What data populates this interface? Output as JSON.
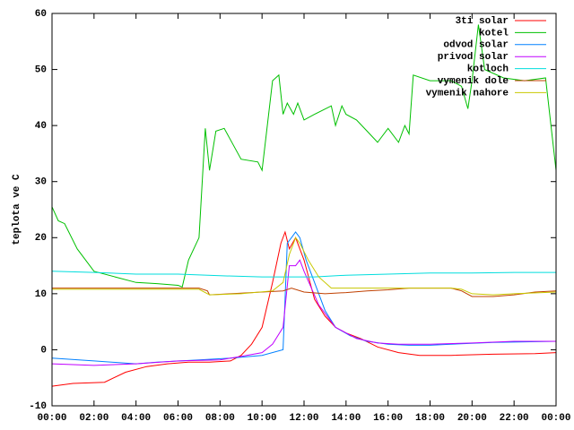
{
  "chart_data": {
    "type": "line",
    "ylabel": "teplota ve C",
    "xlim": [
      0,
      24
    ],
    "xticks": [
      {
        "value": 0,
        "label": "00:00"
      },
      {
        "value": 2,
        "label": "02:00"
      },
      {
        "value": 4,
        "label": "04:00"
      },
      {
        "value": 6,
        "label": "06:00"
      },
      {
        "value": 8,
        "label": "08:00"
      },
      {
        "value": 10,
        "label": "10:00"
      },
      {
        "value": 12,
        "label": "12:00"
      },
      {
        "value": 14,
        "label": "14:00"
      },
      {
        "value": 16,
        "label": "16:00"
      },
      {
        "value": 18,
        "label": "18:00"
      },
      {
        "value": 20,
        "label": "20:00"
      },
      {
        "value": 22,
        "label": "22:00"
      },
      {
        "value": 24,
        "label": "00:00"
      }
    ],
    "ylim": [
      -10,
      60
    ],
    "yticks": [
      -10,
      0,
      10,
      20,
      30,
      40,
      50,
      60
    ],
    "grid": false,
    "legend": "top-right",
    "series": [
      {
        "name": "3ti solar",
        "color": "#ff0000",
        "x": [
          0,
          1,
          2.5,
          3.5,
          4.5,
          5.5,
          6.5,
          7.5,
          8.5,
          9,
          9.5,
          10,
          10.5,
          10.9,
          11.1,
          11.3,
          11.6,
          12,
          12.5,
          13,
          13.5,
          14,
          14.7,
          15.5,
          16.5,
          17.5,
          19,
          21,
          23,
          24
        ],
        "values": [
          -6.5,
          -6,
          -5.8,
          -4,
          -3,
          -2.5,
          -2.2,
          -2.2,
          -2,
          -1,
          1,
          4,
          12,
          19,
          21,
          18,
          20,
          16,
          9,
          6,
          4,
          3,
          2,
          0.5,
          -0.5,
          -1,
          -1,
          -0.8,
          -0.7,
          -0.5
        ]
      },
      {
        "name": "kotel",
        "color": "#00c000",
        "x": [
          0,
          0.3,
          0.6,
          1.2,
          2,
          3,
          4,
          5,
          6,
          6.2,
          6.5,
          7,
          7.3,
          7.5,
          7.8,
          8.2,
          9,
          9.8,
          10,
          10.5,
          10.8,
          11,
          11.2,
          11.5,
          11.7,
          12,
          12.5,
          13.3,
          13.5,
          13.8,
          14,
          14.5,
          15,
          15.5,
          16,
          16.5,
          16.8,
          17,
          17.2,
          18,
          19,
          19.5,
          19.8,
          20,
          20.3,
          20.6,
          21.5,
          22.5,
          23.5,
          24
        ],
        "values": [
          25.5,
          23,
          22.5,
          18,
          14,
          13,
          12,
          11.8,
          11.5,
          11.2,
          16,
          20,
          39.5,
          32,
          39,
          39.5,
          34,
          33.5,
          32,
          48,
          49,
          42,
          44,
          42,
          44,
          41,
          42,
          43.5,
          40,
          43.5,
          42,
          41,
          39,
          37,
          39.5,
          37,
          40,
          38.5,
          49,
          48,
          48,
          47,
          43,
          48,
          58,
          50,
          48.5,
          48,
          48.5,
          32
        ]
      },
      {
        "name": "odvod solar",
        "color": "#0080ff",
        "x": [
          0,
          2,
          4,
          5,
          7,
          8.5,
          10,
          11,
          11.2,
          11.4,
          11.6,
          11.8,
          12.1,
          12.5,
          13,
          13.5,
          14.2,
          15,
          16,
          17,
          18,
          19,
          21,
          24
        ],
        "values": [
          -1.5,
          -2,
          -2.5,
          -2.2,
          -1.8,
          -1.5,
          -1,
          0,
          19,
          20,
          21,
          20,
          16,
          12,
          7,
          4,
          2.5,
          1.5,
          1,
          0.8,
          0.8,
          1,
          1.3,
          1.5
        ]
      },
      {
        "name": "privod solar",
        "color": "#c000ff",
        "x": [
          0,
          2,
          4,
          6,
          8,
          9,
          10,
          10.5,
          11,
          11.3,
          11.6,
          11.8,
          12,
          12.7,
          13.5,
          14.5,
          15.5,
          16.5,
          18,
          20,
          22,
          24
        ],
        "values": [
          -2.5,
          -2.8,
          -2.5,
          -2,
          -1.8,
          -1.2,
          -0.5,
          1,
          4,
          15,
          15,
          16,
          14,
          8,
          4,
          2,
          1.2,
          1,
          1,
          1.2,
          1.5,
          1.5
        ]
      },
      {
        "name": "kotloch",
        "color": "#00dddd",
        "x": [
          0,
          2,
          4,
          6,
          8,
          10,
          11.5,
          12.5,
          14,
          16,
          18,
          20,
          22,
          24
        ],
        "values": [
          14,
          13.8,
          13.5,
          13.5,
          13.2,
          13,
          13,
          13,
          13.3,
          13.5,
          13.7,
          13.7,
          13.8,
          13.8
        ]
      },
      {
        "name": "vymenik dole",
        "color": "#c04000",
        "x": [
          0,
          4,
          7,
          7.4,
          7.5,
          8.5,
          10,
          11,
          11.4,
          12,
          13,
          14,
          15,
          16,
          17,
          19,
          19.5,
          20,
          21,
          22,
          23,
          24
        ],
        "values": [
          11,
          11,
          11,
          10.5,
          9.8,
          10,
          10.3,
          10.5,
          11,
          10.3,
          10,
          10.2,
          10.5,
          10.7,
          11,
          11,
          10.5,
          9.5,
          9.5,
          9.8,
          10.3,
          10.5
        ]
      },
      {
        "name": "vymenik nahore",
        "color": "#c8c800",
        "x": [
          0,
          7,
          7.5,
          9,
          10.5,
          11,
          11.3,
          11.6,
          11.8,
          12.2,
          12.7,
          13.3,
          15,
          17,
          19,
          19.5,
          20,
          21,
          22,
          24
        ],
        "values": [
          10.8,
          10.8,
          9.8,
          10,
          10.5,
          12,
          17,
          20,
          19,
          16,
          13,
          11,
          11,
          11,
          11,
          10.8,
          10,
          9.8,
          10,
          10.3
        ]
      }
    ]
  }
}
